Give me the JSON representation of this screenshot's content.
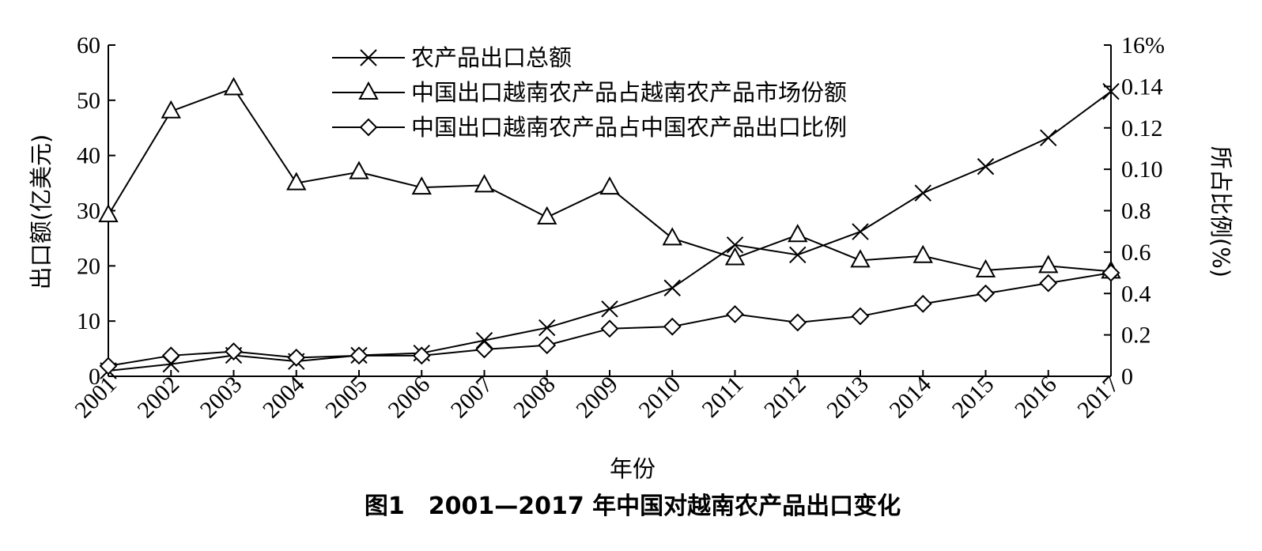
{
  "chart_data": {
    "type": "line",
    "caption": "图1　2001—2017 年中国对越南农产品出口变化",
    "xlabel": "年份",
    "ylabel_left": "出口额(亿美元)",
    "ylabel_right": "所占比例(%)",
    "categories": [
      "2001",
      "2002",
      "2003",
      "2004",
      "2005",
      "2006",
      "2007",
      "2008",
      "2009",
      "2010",
      "2011",
      "2012",
      "2013",
      "2014",
      "2015",
      "2016",
      "2017"
    ],
    "ylim_left": [
      0,
      60
    ],
    "yticks_left": [
      "0",
      "10",
      "20",
      "30",
      "40",
      "50",
      "60"
    ],
    "ylim_right": [
      0,
      1.6
    ],
    "yticks_right": [
      "0",
      "0.2",
      "0.4",
      "0.6",
      "0.8",
      "0.10",
      "0.12",
      "0.14",
      "16%"
    ],
    "legend_position": "top-center",
    "grid": false,
    "series": [
      {
        "name": "农产品出口总额",
        "axis": "left",
        "marker": "x",
        "values": [
          1.0,
          2.2,
          3.8,
          2.7,
          3.8,
          4.2,
          6.5,
          8.8,
          12.2,
          16.0,
          23.8,
          22.0,
          26.2,
          33.2,
          38.0,
          43.2,
          51.6
        ]
      },
      {
        "name": "中国出口越南农产品占越南农产品市场份额",
        "axis": "left",
        "marker": "triangle",
        "values": [
          29.2,
          48.0,
          52.2,
          35.0,
          37.0,
          34.2,
          34.6,
          28.8,
          34.2,
          25.0,
          21.4,
          25.6,
          21.0,
          21.8,
          19.2,
          20.0,
          19.0
        ]
      },
      {
        "name": "中国出口越南农产品占中国农产品出口比例",
        "axis": "right",
        "marker": "diamond",
        "values": [
          0.05,
          0.1,
          0.12,
          0.09,
          0.1,
          0.1,
          0.13,
          0.15,
          0.23,
          0.24,
          0.3,
          0.26,
          0.29,
          0.35,
          0.4,
          0.45,
          0.5
        ]
      }
    ]
  }
}
